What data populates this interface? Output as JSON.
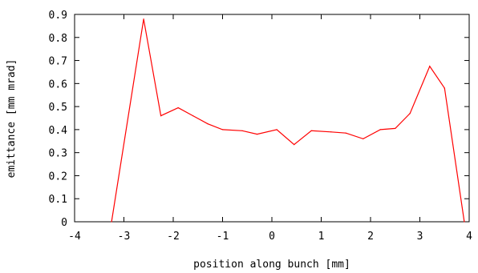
{
  "chart_data": {
    "type": "line",
    "xlabel": "position along bunch [mm]",
    "ylabel": "emittance [mm mrad]",
    "xlim": [
      -4,
      4
    ],
    "ylim": [
      0,
      0.9
    ],
    "xticks": [
      "-4",
      "-3",
      "-2",
      "-1",
      "0",
      "1",
      "2",
      "3",
      "4"
    ],
    "yticks": [
      "0",
      "0.1",
      "0.2",
      "0.3",
      "0.4",
      "0.5",
      "0.6",
      "0.7",
      "0.8",
      "0.9"
    ],
    "grid": false,
    "series": [
      {
        "color": "#ff0000",
        "x": [
          -3.25,
          -2.6,
          -2.25,
          -1.9,
          -1.6,
          -1.3,
          -1.0,
          -0.6,
          -0.3,
          0.1,
          0.45,
          0.8,
          1.2,
          1.5,
          1.85,
          2.2,
          2.5,
          2.8,
          3.2,
          3.5,
          3.9
        ],
        "y": [
          0.0,
          0.88,
          0.46,
          0.495,
          0.46,
          0.425,
          0.4,
          0.395,
          0.38,
          0.4,
          0.335,
          0.395,
          0.39,
          0.385,
          0.36,
          0.4,
          0.405,
          0.47,
          0.675,
          0.58,
          0.0
        ]
      }
    ]
  }
}
